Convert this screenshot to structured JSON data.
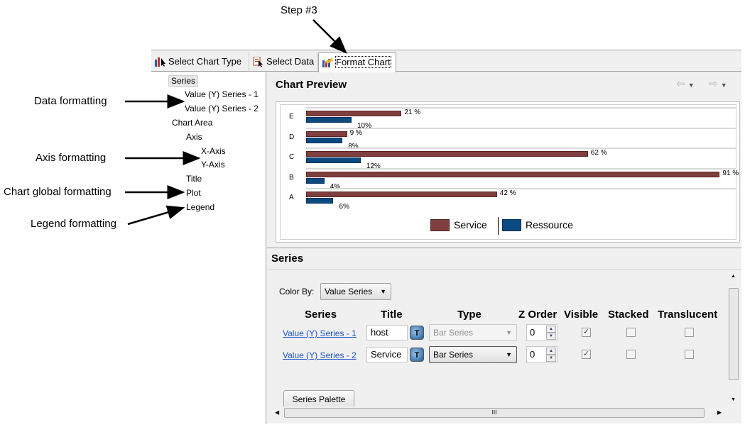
{
  "annotations": {
    "step": "Step #3",
    "data_formatting": "Data formatting",
    "axis_formatting": "Axis formatting",
    "chart_global_formatting": "Chart global formatting",
    "legend_formatting": "Legend formatting"
  },
  "tabs": [
    {
      "label": "Select Chart Type",
      "icon": "chart-type-icon"
    },
    {
      "label": "Select Data",
      "icon": "select-data-icon"
    },
    {
      "label": "Format Chart",
      "icon": "format-chart-icon",
      "active": true
    }
  ],
  "tree": {
    "items": [
      "Series",
      "Value (Y) Series - 1",
      "Value (Y) Series - 2",
      "Chart Area",
      "Axis",
      "X-Axis",
      "Y-Axis",
      "Title",
      "Plot",
      "Legend"
    ],
    "selected": "Series"
  },
  "preview": {
    "title": "Chart Preview",
    "nav": [
      "back-arrow-icon",
      "forward-arrow-icon"
    ]
  },
  "chart_data": {
    "type": "bar",
    "orientation": "horizontal",
    "categories": [
      "E",
      "D",
      "C",
      "B",
      "A"
    ],
    "series": [
      {
        "name": "Service",
        "color": "#7f3f3f",
        "values": [
          21,
          9,
          62,
          91,
          42
        ],
        "labels": [
          "21 %",
          "9 %",
          "62 %",
          "91 %",
          "42 %"
        ]
      },
      {
        "name": "Ressource",
        "color": "#0b4a80",
        "values": [
          10,
          8,
          12,
          4,
          6
        ],
        "labels": [
          "10%",
          "8%",
          "12%",
          "4%",
          "6%"
        ]
      }
    ],
    "legend": "bottom",
    "grid": true
  },
  "series_panel": {
    "title": "Series",
    "color_by_label": "Color By:",
    "color_by_value": "Value Series",
    "columns": [
      "Series",
      "Title",
      "Type",
      "Z Order",
      "Visible",
      "Stacked",
      "Translucent"
    ],
    "rows": [
      {
        "series": "Value (Y) Series - 1",
        "title": "host",
        "type": "Bar Series",
        "type_enabled": false,
        "z_order": "0",
        "visible": true,
        "stacked": false,
        "translucent": false
      },
      {
        "series": "Value (Y) Series - 2",
        "title": "Service",
        "type": "Bar Series",
        "type_enabled": true,
        "z_order": "0",
        "visible": true,
        "stacked": false,
        "translucent": false
      }
    ],
    "palette_button": "Series Palette"
  }
}
